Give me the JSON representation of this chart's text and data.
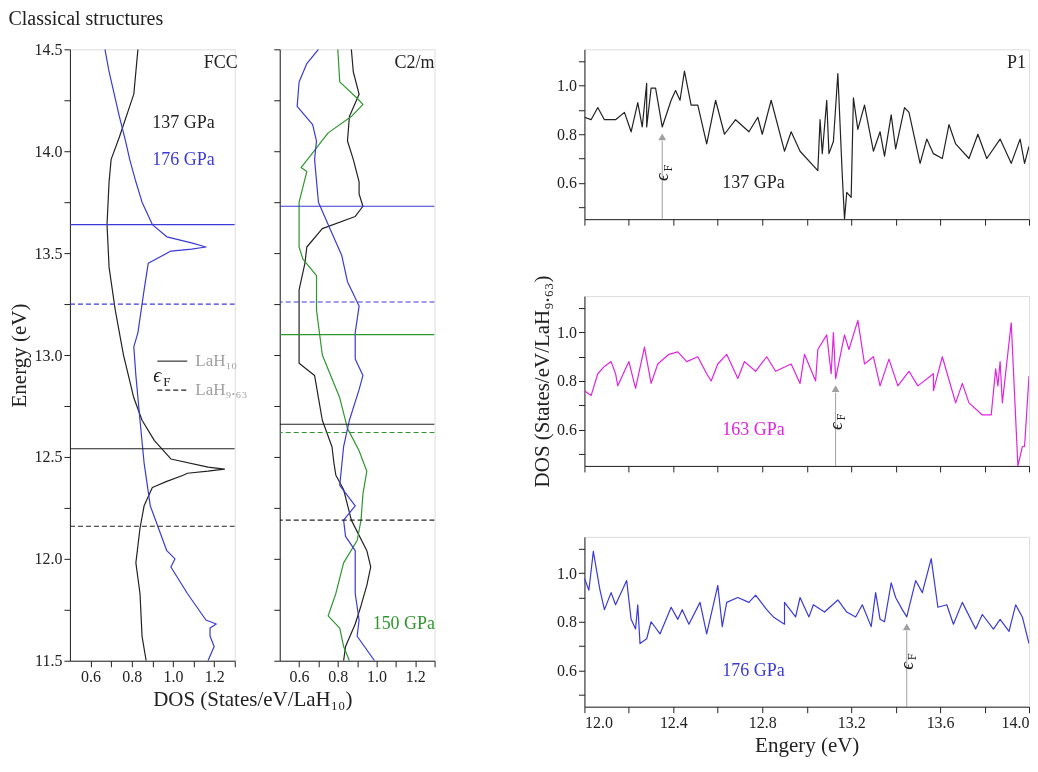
{
  "chart_data": [
    {
      "type": "line",
      "title": "Classical structures",
      "xlabel": "DOS (States/eV/LaH₁₀)",
      "ylabel": "Energy (eV)",
      "xlim": [
        0.5,
        1.3
      ],
      "xticks": [
        0.6,
        {
          "value": 0.7,
          "label": null
        },
        0.8,
        {
          "value": 0.9,
          "label": null
        },
        {
          "value": 1.0,
          "label": "1.0"
        },
        {
          "value": 1.1,
          "label": null
        },
        1.2,
        {
          "value": 1.3,
          "label": null
        }
      ],
      "ylim": [
        11.5,
        14.5
      ],
      "yticks": [
        11.5,
        {
          "value": 11.75,
          "label": null
        },
        {
          "value": 12.0,
          "label": "12.0"
        },
        {
          "value": 12.25,
          "label": null
        },
        12.5,
        {
          "value": 12.75,
          "label": null
        },
        {
          "value": 13.0,
          "label": "13.0"
        },
        {
          "value": 13.25,
          "label": null
        },
        13.5,
        {
          "value": 13.75,
          "label": null
        },
        {
          "value": 14.0,
          "label": "14.0"
        },
        {
          "value": 14.25,
          "label": null
        },
        14.5
      ],
      "annotations": [
        "FCC"
      ],
      "legend": "right",
      "legend_title": "ϵ$_{F}$",
      "series": [
        {
          "name": "137 GPa",
          "color": "#222222",
          "x": [
            0.83,
            0.81,
            0.79,
            0.74,
            0.7,
            0.69,
            0.68,
            0.69,
            0.72,
            0.76,
            0.81,
            0.85,
            0.91,
            0.99,
            1.17,
            1.25,
            1.17,
            1.07,
            1.05,
            0.97,
            0.9,
            0.86,
            0.84,
            0.82,
            0.84,
            0.85,
            0.87
          ],
          "values": [
            14.5,
            14.28,
            14.22,
            14.07,
            13.96,
            13.85,
            13.64,
            13.43,
            13.22,
            13.0,
            12.79,
            12.68,
            12.58,
            12.49,
            12.45,
            12.44,
            12.43,
            12.42,
            12.41,
            12.38,
            12.35,
            12.26,
            12.15,
            11.98,
            11.83,
            11.62,
            11.5
          ]
        },
        {
          "name": "176 GPa",
          "color": "#3a3ad6",
          "x": [
            0.67,
            0.69,
            0.74,
            0.77,
            0.79,
            0.82,
            0.85,
            0.9,
            0.97,
            1.09,
            1.16,
            1.09,
            0.99,
            0.88,
            0.86,
            0.83,
            0.81,
            0.82,
            0.84,
            0.86,
            0.89,
            0.97,
            1.01,
            0.99,
            1.07,
            1.16,
            1.21,
            1.18,
            1.18,
            1.2,
            1.17
          ],
          "values": [
            14.5,
            14.39,
            14.17,
            14.05,
            13.96,
            13.85,
            13.75,
            13.64,
            13.58,
            13.55,
            13.53,
            13.52,
            13.51,
            13.45,
            13.32,
            13.11,
            13.04,
            12.9,
            12.68,
            12.47,
            12.26,
            12.04,
            12.0,
            11.96,
            11.83,
            11.7,
            11.68,
            11.66,
            11.62,
            11.57,
            11.5
          ]
        }
      ],
      "ref_lines": [
        {
          "axis": "y",
          "value": 13.64,
          "color": "#3a3ad6",
          "line_style": "solid"
        },
        {
          "axis": "y",
          "value": 13.25,
          "color": "#3a3ad6",
          "line_style": "dashed"
        },
        {
          "axis": "y",
          "value": 12.54,
          "label": "LaH₁₀",
          "color": "#222222",
          "line_style": "solid"
        },
        {
          "axis": "y",
          "value": 12.16,
          "label": "LaH₉.₆₃",
          "color": "#222222",
          "line_style": "dashed"
        }
      ]
    },
    {
      "type": "line",
      "xlim": [
        0.5,
        1.3
      ],
      "tick_labels": "x",
      "xticks": [
        0.6,
        {
          "value": 0.7,
          "label": null
        },
        0.8,
        {
          "value": 0.9,
          "label": null
        },
        {
          "value": 1.0,
          "label": "1.0"
        },
        {
          "value": 1.1,
          "label": null
        },
        1.2,
        {
          "value": 1.3,
          "label": null
        }
      ],
      "ylim": [
        11.5,
        14.5
      ],
      "yticks": [
        11.5,
        {
          "value": 11.75,
          "label": null
        },
        12.0,
        {
          "value": 12.25,
          "label": null
        },
        12.5,
        {
          "value": 12.75,
          "label": null
        },
        13.0,
        {
          "value": 13.25,
          "label": null
        },
        13.5,
        {
          "value": 13.75,
          "label": null
        },
        14.0,
        {
          "value": 14.25,
          "label": null
        },
        14.5
      ],
      "annotations": [
        "C2/m"
      ],
      "series": [
        {
          "color": "#222222",
          "x": [
            0.87,
            0.88,
            0.91,
            0.86,
            0.85,
            0.88,
            0.91,
            0.91,
            0.93,
            0.89,
            0.72,
            0.64,
            0.63,
            0.6,
            0.6,
            0.6,
            0.68,
            0.7,
            0.72,
            0.77,
            0.78,
            0.79,
            0.83,
            0.87,
            0.95,
            0.97,
            0.95,
            0.92,
            0.89,
            0.84,
            0.83
          ],
          "values": [
            14.5,
            14.39,
            14.28,
            14.17,
            14.05,
            13.96,
            13.85,
            13.79,
            13.73,
            13.68,
            13.62,
            13.53,
            13.45,
            13.32,
            13.11,
            12.96,
            12.9,
            12.79,
            12.68,
            12.55,
            12.47,
            12.41,
            12.34,
            12.19,
            12.04,
            11.96,
            11.87,
            11.77,
            11.68,
            11.57,
            11.5
          ]
        },
        {
          "name": "150 GPa",
          "color": "#2e962e",
          "x": [
            0.8,
            0.81,
            0.9,
            0.93,
            0.87,
            0.75,
            0.66,
            0.61,
            0.64,
            0.6,
            0.6,
            0.62,
            0.69,
            0.69,
            0.72,
            0.81,
            0.85,
            0.91,
            0.95,
            0.93,
            0.92,
            0.9,
            0.83,
            0.79,
            0.75,
            0.81,
            0.83,
            0.86
          ],
          "values": [
            14.5,
            14.34,
            14.26,
            14.23,
            14.17,
            14.09,
            13.98,
            13.92,
            13.9,
            13.75,
            13.53,
            13.47,
            13.39,
            13.22,
            13.0,
            12.79,
            12.64,
            12.53,
            12.43,
            12.32,
            12.19,
            12.09,
            11.98,
            11.83,
            11.72,
            11.66,
            11.57,
            11.5
          ]
        },
        {
          "color": "#3a3ad6",
          "x": [
            0.7,
            0.64,
            0.6,
            0.59,
            0.67,
            0.69,
            0.68,
            0.7,
            0.75,
            0.82,
            0.85,
            0.91,
            0.89,
            0.89,
            0.93,
            0.91,
            0.86,
            0.83,
            0.81,
            0.89,
            0.83,
            0.84,
            0.89,
            0.89,
            0.91,
            0.9,
            0.99
          ],
          "values": [
            14.5,
            14.43,
            14.34,
            14.22,
            14.13,
            14.05,
            13.96,
            13.75,
            13.64,
            13.49,
            13.36,
            13.24,
            13.11,
            12.98,
            12.9,
            12.83,
            12.68,
            12.55,
            12.36,
            12.26,
            12.19,
            12.11,
            12.04,
            11.83,
            11.7,
            11.62,
            11.5
          ]
        }
      ],
      "ref_lines": [
        {
          "axis": "y",
          "value": 13.73,
          "color": "#3a3ad6",
          "line_style": "solid"
        },
        {
          "axis": "y",
          "value": 13.26,
          "color": "#3a3ad6",
          "line_style": "dashed"
        },
        {
          "axis": "y",
          "value": 13.1,
          "color": "#2e962e",
          "line_style": "solid"
        },
        {
          "axis": "y",
          "value": 12.66,
          "color": "#222222",
          "line_style": "solid"
        },
        {
          "axis": "y",
          "value": 12.62,
          "color": "#2e962e",
          "line_style": "dashed"
        },
        {
          "axis": "y",
          "value": 12.19,
          "color": "#222222",
          "line_style": "dashed"
        }
      ]
    },
    {
      "type": "line",
      "tick_labels": "y",
      "xlim": [
        12.0,
        14.0
      ],
      "xticks": [
        12.0,
        {
          "value": 12.2,
          "label": null
        },
        12.4,
        {
          "value": 12.6,
          "label": null
        },
        12.8,
        {
          "value": 13.0,
          "label": null
        },
        13.2,
        {
          "value": 13.4,
          "label": null
        },
        13.6,
        {
          "value": 13.8,
          "label": null
        },
        14.0
      ],
      "ylim": [
        0.45,
        1.15
      ],
      "yticks": [
        {
          "value": 0.5,
          "label": null
        },
        0.6,
        {
          "value": 0.7,
          "label": null
        },
        0.8,
        {
          "value": 0.9,
          "label": null
        },
        {
          "value": 1.0,
          "label": "1.0"
        },
        {
          "value": 1.1,
          "label": null
        }
      ],
      "annotations": [
        "P1",
        {
          "text": "ϵ$_{F}$",
          "x": 12.35,
          "y": 0.83
        }
      ],
      "series": [
        {
          "name": "137 GPa",
          "color": "#222222",
          "x": [
            12.0,
            12.03,
            12.06,
            12.09,
            12.14,
            12.18,
            12.21,
            12.24,
            12.26,
            12.28,
            12.28,
            12.3,
            12.32,
            12.35,
            12.39,
            12.41,
            12.43,
            12.45,
            12.48,
            12.51,
            12.55,
            12.59,
            12.63,
            12.68,
            12.74,
            12.78,
            12.8,
            12.84,
            12.9,
            12.93,
            12.97,
            13.05,
            13.06,
            13.07,
            13.09,
            13.1,
            13.12,
            13.14,
            13.16,
            13.17,
            13.18,
            13.2,
            13.21,
            13.23,
            13.26,
            13.3,
            13.33,
            13.35,
            13.38,
            13.4,
            13.44,
            13.46,
            13.51,
            13.54,
            13.57,
            13.61,
            13.64,
            13.67,
            13.73,
            13.77,
            13.81,
            13.87,
            13.92,
            13.96,
            13.98,
            14.0
          ],
          "values": [
            0.87,
            0.86,
            0.91,
            0.86,
            0.86,
            0.89,
            0.81,
            0.93,
            0.83,
            1.01,
            0.83,
            0.99,
            0.99,
            0.83,
            0.94,
            0.98,
            0.94,
            1.06,
            0.92,
            0.92,
            0.76,
            0.94,
            0.8,
            0.86,
            0.81,
            0.87,
            0.8,
            0.94,
            0.73,
            0.81,
            0.73,
            0.65,
            0.86,
            0.72,
            0.94,
            0.72,
            0.77,
            1.05,
            0.63,
            0.45,
            0.56,
            0.54,
            0.95,
            0.82,
            0.92,
            0.73,
            0.81,
            0.71,
            0.88,
            0.74,
            0.91,
            0.89,
            0.68,
            0.78,
            0.72,
            0.7,
            0.84,
            0.76,
            0.7,
            0.8,
            0.7,
            0.78,
            0.68,
            0.78,
            0.68,
            0.75
          ]
        }
      ]
    },
    {
      "type": "line",
      "tick_labels": "y",
      "ylabel": "DOS (States/eV/LaH₉.₆₃)",
      "xlim": [
        12.0,
        14.0
      ],
      "xticks": [
        12.0,
        {
          "value": 12.2,
          "label": null
        },
        12.4,
        {
          "value": 12.6,
          "label": null
        },
        12.8,
        {
          "value": 13.0,
          "label": null
        },
        13.2,
        {
          "value": 13.4,
          "label": null
        },
        13.6,
        {
          "value": 13.8,
          "label": null
        },
        14.0
      ],
      "ylim": [
        0.45,
        1.15
      ],
      "yticks": [
        {
          "value": 0.5,
          "label": null
        },
        0.6,
        {
          "value": 0.7,
          "label": null
        },
        0.8,
        {
          "value": 0.9,
          "label": null
        },
        {
          "value": 1.0,
          "label": "1.0"
        },
        {
          "value": 1.1,
          "label": null
        }
      ],
      "annotations": [
        {
          "text": "ϵ$_{F}$",
          "x": 13.13,
          "y": 0.81
        }
      ],
      "series": [
        {
          "name": "163 GPa",
          "color": "#e024e0",
          "x": [
            12.0,
            12.03,
            12.06,
            12.09,
            12.12,
            12.14,
            12.15,
            12.2,
            12.23,
            12.27,
            12.3,
            12.33,
            12.38,
            12.42,
            12.46,
            12.51,
            12.55,
            12.57,
            12.6,
            12.64,
            12.69,
            12.72,
            12.77,
            12.82,
            12.86,
            12.93,
            12.97,
            12.99,
            13.04,
            13.05,
            13.09,
            13.11,
            13.12,
            13.13,
            13.17,
            13.19,
            13.23,
            13.26,
            13.3,
            13.33,
            13.37,
            13.41,
            13.46,
            13.5,
            13.57,
            13.57,
            13.61,
            13.67,
            13.7,
            13.73,
            13.79,
            13.83,
            13.85,
            13.86,
            13.87,
            13.88,
            13.92,
            13.95,
            13.97,
            13.98,
            14.0
          ],
          "values": [
            0.76,
            0.74,
            0.83,
            0.86,
            0.88,
            0.83,
            0.78,
            0.88,
            0.77,
            0.94,
            0.79,
            0.87,
            0.91,
            0.92,
            0.88,
            0.9,
            0.83,
            0.8,
            0.87,
            0.91,
            0.81,
            0.88,
            0.84,
            0.9,
            0.84,
            0.87,
            0.79,
            0.91,
            0.8,
            0.93,
            0.99,
            0.83,
            1.0,
            0.81,
            0.99,
            0.93,
            1.05,
            0.87,
            0.9,
            0.78,
            0.89,
            0.78,
            0.84,
            0.78,
            0.83,
            0.76,
            0.9,
            0.71,
            0.79,
            0.71,
            0.66,
            0.66,
            0.85,
            0.78,
            0.88,
            0.71,
            1.04,
            0.45,
            0.53,
            0.53,
            0.82
          ]
        }
      ]
    },
    {
      "type": "line",
      "xlabel": "Engery (eV)",
      "xlim": [
        12.0,
        14.0
      ],
      "xticks": [
        {
          "value": 12.0,
          "label": "12.0"
        },
        {
          "value": 12.2,
          "label": null
        },
        12.4,
        {
          "value": 12.6,
          "label": null
        },
        12.8,
        {
          "value": 13.0,
          "label": null
        },
        13.2,
        {
          "value": 13.4,
          "label": null
        },
        13.6,
        {
          "value": 13.8,
          "label": null
        },
        {
          "value": 14.0,
          "label": "14.0"
        }
      ],
      "ylim": [
        0.45,
        1.15
      ],
      "yticks": [
        {
          "value": 0.5,
          "label": null
        },
        0.6,
        {
          "value": 0.7,
          "label": null
        },
        0.8,
        {
          "value": 0.9,
          "label": null
        },
        {
          "value": 1.0,
          "label": "1.0"
        },
        {
          "value": 1.1,
          "label": null
        }
      ],
      "annotations": [
        {
          "text": "ϵ$_{F}$",
          "x": 13.45,
          "y": 0.82
        }
      ],
      "series": [
        {
          "name": "176 GPa",
          "color": "#3a3ad6",
          "x": [
            12.0,
            12.02,
            12.04,
            12.07,
            12.09,
            12.12,
            12.14,
            12.19,
            12.21,
            12.23,
            12.24,
            12.25,
            12.28,
            12.3,
            12.34,
            12.39,
            12.42,
            12.44,
            12.47,
            12.52,
            12.55,
            12.6,
            12.62,
            12.64,
            12.69,
            12.74,
            12.77,
            12.82,
            12.85,
            12.9,
            12.9,
            12.95,
            12.97,
            13.01,
            13.03,
            13.08,
            13.14,
            13.18,
            13.22,
            13.25,
            13.29,
            13.31,
            13.33,
            13.35,
            13.38,
            13.4,
            13.43,
            13.45,
            13.49,
            13.52,
            13.56,
            13.59,
            13.63,
            13.66,
            13.7,
            13.76,
            13.79,
            13.84,
            13.87,
            13.91,
            13.94,
            13.97,
            14.0
          ],
          "values": [
            0.98,
            0.93,
            1.09,
            0.93,
            0.85,
            0.92,
            0.87,
            0.97,
            0.81,
            0.77,
            0.87,
            0.71,
            0.73,
            0.8,
            0.75,
            0.86,
            0.81,
            0.85,
            0.79,
            0.88,
            0.75,
            0.95,
            0.78,
            0.88,
            0.9,
            0.88,
            0.91,
            0.85,
            0.82,
            0.79,
            0.88,
            0.82,
            0.9,
            0.82,
            0.87,
            0.84,
            0.89,
            0.84,
            0.82,
            0.87,
            0.78,
            0.92,
            0.81,
            0.8,
            0.96,
            0.9,
            0.85,
            0.82,
            0.97,
            0.92,
            1.06,
            0.86,
            0.87,
            0.79,
            0.88,
            0.77,
            0.83,
            0.77,
            0.81,
            0.76,
            0.87,
            0.82,
            0.71
          ]
        }
      ]
    }
  ]
}
